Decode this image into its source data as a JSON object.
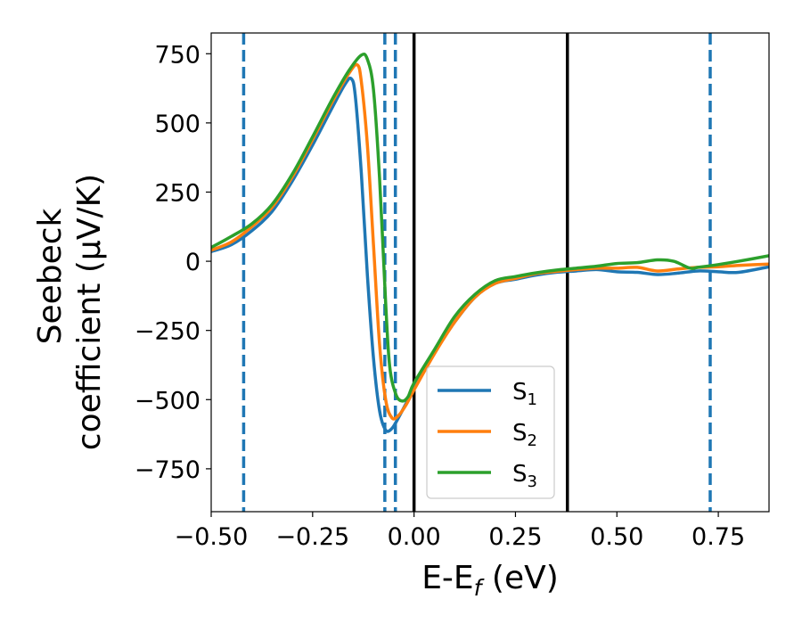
{
  "chart_data": {
    "type": "line",
    "xlabel": "E-E_f (eV)",
    "ylabel": "Seebeck coefficient (μV/K)",
    "ylabel_lines": [
      "Seebeck",
      "coefficient  (μV/K)"
    ],
    "xlim": [
      -0.5,
      0.875
    ],
    "ylim": [
      -905,
      825
    ],
    "xticks": [
      -0.5,
      -0.25,
      0.0,
      0.25,
      0.5,
      0.75
    ],
    "xtick_labels": [
      "−0.50",
      "−0.25",
      "0.00",
      "0.25",
      "0.50",
      "0.75"
    ],
    "yticks": [
      -750,
      -500,
      -250,
      0,
      250,
      500,
      750
    ],
    "ytick_labels": [
      "−750",
      "−500",
      "−250",
      "0",
      "250",
      "500",
      "750"
    ],
    "grid": false,
    "legend_position": "lower-center",
    "series": [
      {
        "name": "S1",
        "label_base": "S",
        "label_sub": "1",
        "color": "#1f77b4",
        "points": [
          [
            -0.5,
            35
          ],
          [
            -0.45,
            60
          ],
          [
            -0.4,
            110
          ],
          [
            -0.35,
            180
          ],
          [
            -0.3,
            290
          ],
          [
            -0.25,
            420
          ],
          [
            -0.2,
            560
          ],
          [
            -0.17,
            640
          ],
          [
            -0.155,
            660
          ],
          [
            -0.145,
            600
          ],
          [
            -0.13,
            320
          ],
          [
            -0.115,
            -50
          ],
          [
            -0.1,
            -350
          ],
          [
            -0.085,
            -540
          ],
          [
            -0.07,
            -610
          ],
          [
            -0.055,
            -605
          ],
          [
            -0.04,
            -570
          ],
          [
            -0.02,
            -515
          ],
          [
            0.0,
            -460
          ],
          [
            0.05,
            -330
          ],
          [
            0.1,
            -220
          ],
          [
            0.15,
            -130
          ],
          [
            0.2,
            -80
          ],
          [
            0.25,
            -65
          ],
          [
            0.3,
            -50
          ],
          [
            0.35,
            -40
          ],
          [
            0.4,
            -35
          ],
          [
            0.45,
            -30
          ],
          [
            0.5,
            -38
          ],
          [
            0.55,
            -40
          ],
          [
            0.6,
            -48
          ],
          [
            0.65,
            -43
          ],
          [
            0.7,
            -35
          ],
          [
            0.75,
            -38
          ],
          [
            0.8,
            -40
          ],
          [
            0.875,
            -20
          ]
        ]
      },
      {
        "name": "S2",
        "label_base": "S",
        "label_sub": "2",
        "color": "#ff7f0e",
        "points": [
          [
            -0.5,
            40
          ],
          [
            -0.45,
            70
          ],
          [
            -0.4,
            125
          ],
          [
            -0.35,
            195
          ],
          [
            -0.3,
            305
          ],
          [
            -0.25,
            440
          ],
          [
            -0.2,
            580
          ],
          [
            -0.16,
            680
          ],
          [
            -0.14,
            710
          ],
          [
            -0.13,
            650
          ],
          [
            -0.115,
            420
          ],
          [
            -0.1,
            60
          ],
          [
            -0.085,
            -300
          ],
          [
            -0.07,
            -500
          ],
          [
            -0.055,
            -565
          ],
          [
            -0.04,
            -560
          ],
          [
            -0.02,
            -520
          ],
          [
            0.0,
            -465
          ],
          [
            0.05,
            -335
          ],
          [
            0.1,
            -220
          ],
          [
            0.15,
            -130
          ],
          [
            0.2,
            -80
          ],
          [
            0.25,
            -62
          ],
          [
            0.3,
            -45
          ],
          [
            0.35,
            -37
          ],
          [
            0.4,
            -30
          ],
          [
            0.45,
            -25
          ],
          [
            0.5,
            -25
          ],
          [
            0.55,
            -22
          ],
          [
            0.6,
            -35
          ],
          [
            0.65,
            -28
          ],
          [
            0.7,
            -22
          ],
          [
            0.75,
            -20
          ],
          [
            0.8,
            -15
          ],
          [
            0.875,
            -10
          ]
        ]
      },
      {
        "name": "S3",
        "label_base": "S",
        "label_sub": "3",
        "color": "#2ca02c",
        "points": [
          [
            -0.5,
            50
          ],
          [
            -0.45,
            90
          ],
          [
            -0.4,
            135
          ],
          [
            -0.35,
            205
          ],
          [
            -0.3,
            315
          ],
          [
            -0.25,
            450
          ],
          [
            -0.2,
            590
          ],
          [
            -0.16,
            690
          ],
          [
            -0.13,
            745
          ],
          [
            -0.115,
            730
          ],
          [
            -0.1,
            620
          ],
          [
            -0.085,
            300
          ],
          [
            -0.07,
            -150
          ],
          [
            -0.06,
            -380
          ],
          [
            -0.045,
            -480
          ],
          [
            -0.03,
            -505
          ],
          [
            -0.015,
            -490
          ],
          [
            0.0,
            -440
          ],
          [
            0.05,
            -320
          ],
          [
            0.1,
            -200
          ],
          [
            0.15,
            -120
          ],
          [
            0.2,
            -70
          ],
          [
            0.25,
            -55
          ],
          [
            0.3,
            -42
          ],
          [
            0.35,
            -32
          ],
          [
            0.4,
            -25
          ],
          [
            0.45,
            -18
          ],
          [
            0.5,
            -8
          ],
          [
            0.55,
            -5
          ],
          [
            0.6,
            5
          ],
          [
            0.64,
            0
          ],
          [
            0.68,
            -25
          ],
          [
            0.7,
            -22
          ],
          [
            0.75,
            -12
          ],
          [
            0.8,
            0
          ],
          [
            0.875,
            20
          ]
        ]
      }
    ],
    "vlines_dashed": {
      "color": "#1f77b4",
      "x": [
        -0.42,
        -0.072,
        -0.046,
        0.73
      ]
    },
    "vlines_solid": {
      "color": "#000000",
      "x": [
        0.0,
        0.378
      ]
    }
  }
}
